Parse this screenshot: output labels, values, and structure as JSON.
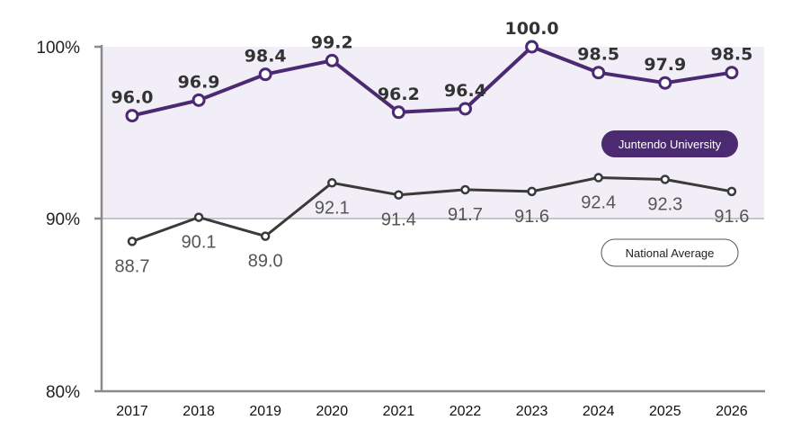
{
  "chart_data": {
    "type": "line",
    "x": [
      "2017",
      "2018",
      "2019",
      "2020",
      "2021",
      "2022",
      "2023",
      "2024",
      "2025",
      "2026"
    ],
    "ylim": [
      80,
      100
    ],
    "yticks": [
      "80%",
      "90%",
      "100%"
    ],
    "grid": false,
    "legend_placement": "right",
    "series": [
      {
        "name": "Juntendo University",
        "color": "#4b2a72",
        "values": [
          96.0,
          96.9,
          98.4,
          99.2,
          96.2,
          96.4,
          100.0,
          98.5,
          97.9,
          98.5
        ],
        "labels": [
          "96.0",
          "96.9",
          "98.4",
          "99.2",
          "96.2",
          "96.4",
          "100.0",
          "98.5",
          "97.9",
          "98.5"
        ]
      },
      {
        "name": "National Average",
        "color": "#3a3a3a",
        "values": [
          88.7,
          90.1,
          89.0,
          92.1,
          91.4,
          91.7,
          91.6,
          92.4,
          92.3,
          91.6
        ],
        "labels": [
          "88.7",
          "90.1",
          "89.0",
          "92.1",
          "91.4",
          "91.7",
          "91.6",
          "92.4",
          "92.3",
          "91.6"
        ]
      }
    ],
    "shaded_band": {
      "from": 90,
      "to": 100,
      "color": "#f1eef8"
    }
  }
}
